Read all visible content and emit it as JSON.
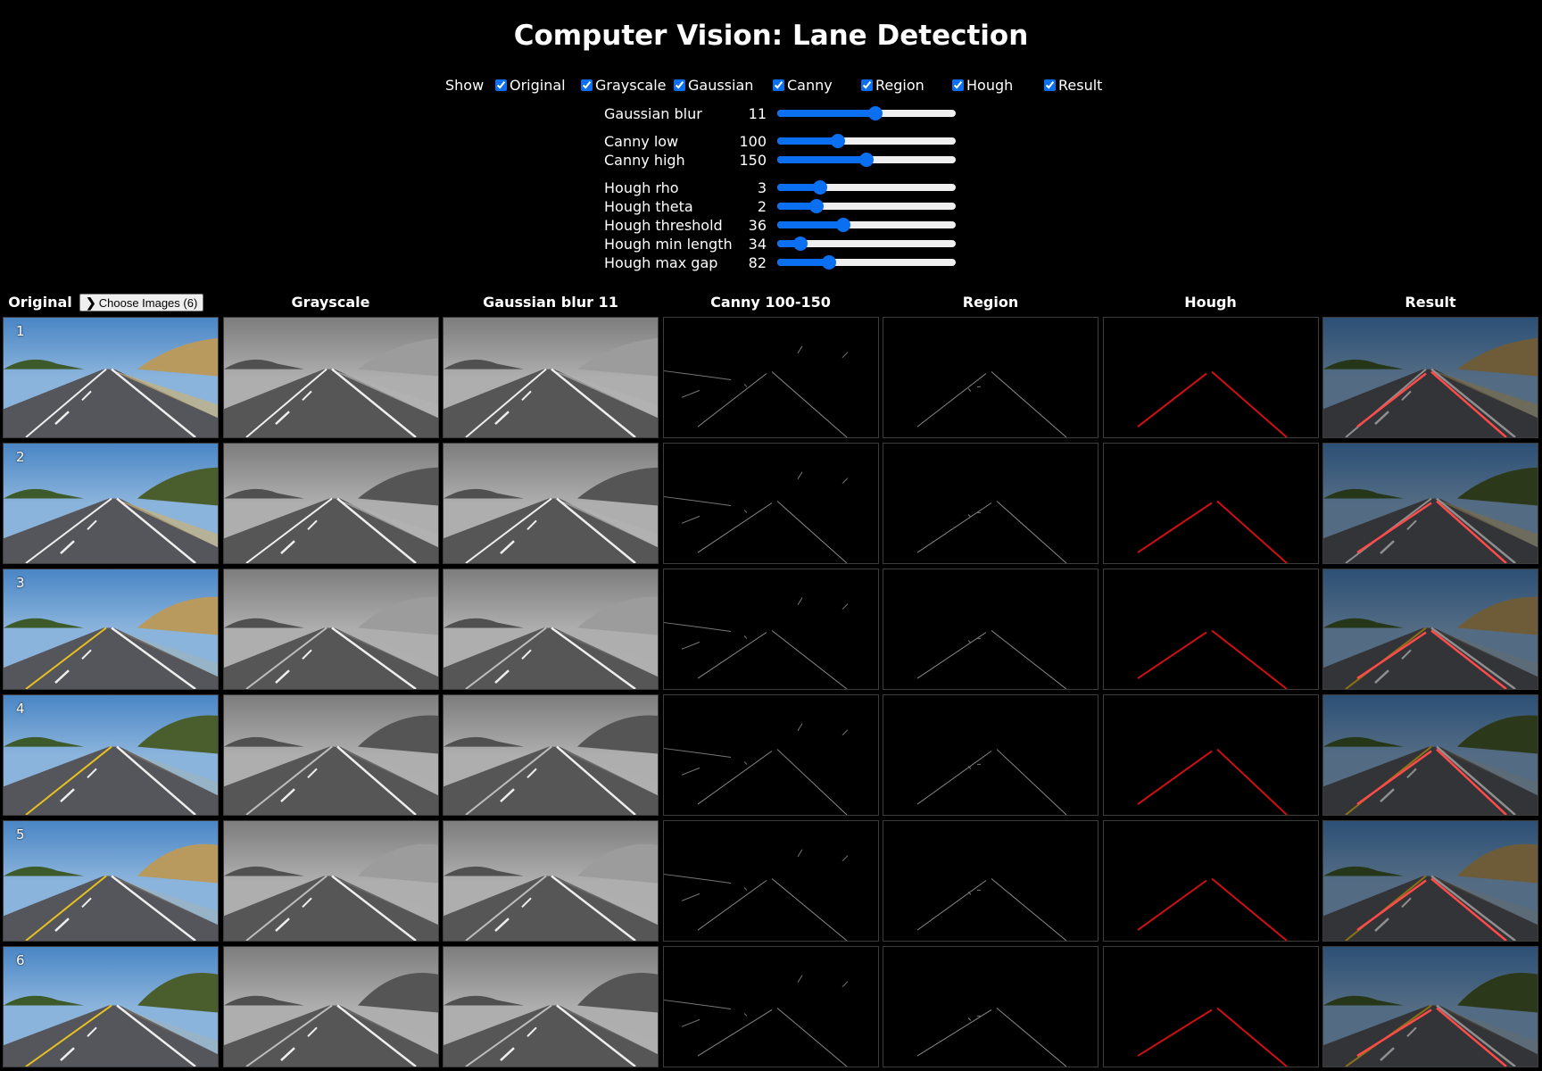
{
  "title": "Computer Vision: Lane Detection",
  "show": {
    "label": "Show",
    "options": [
      {
        "label": "Original",
        "checked": true
      },
      {
        "label": "Grayscale",
        "checked": true
      },
      {
        "label": "Gaussian",
        "checked": true
      },
      {
        "label": "Canny",
        "checked": true
      },
      {
        "label": "Region",
        "checked": true
      },
      {
        "label": "Hough",
        "checked": true
      },
      {
        "label": "Result",
        "checked": true
      }
    ]
  },
  "sliders": [
    {
      "label": "Gaussian blur",
      "value": "11",
      "percent": 55
    },
    {
      "label": "Canny low",
      "value": "100",
      "percent": 34
    },
    {
      "label": "Canny high",
      "value": "150",
      "percent": 50
    },
    {
      "label": "Hough rho",
      "value": "3",
      "percent": 24
    },
    {
      "label": "Hough theta",
      "value": "2",
      "percent": 22
    },
    {
      "label": "Hough threshold",
      "value": "36",
      "percent": 37
    },
    {
      "label": "Hough min length",
      "value": "34",
      "percent": 13
    },
    {
      "label": "Hough max gap",
      "value": "82",
      "percent": 29
    }
  ],
  "columns": [
    "Original",
    "Grayscale",
    "Gaussian blur 11",
    "Canny 100-150",
    "Region",
    "Hough",
    "Result"
  ],
  "choose_button": {
    "label": "Choose Images (6)",
    "icon": "chevron-right-icon"
  },
  "rows": [
    {
      "number": "1",
      "yellow_line": false
    },
    {
      "number": "2",
      "yellow_line": false
    },
    {
      "number": "3",
      "yellow_line": true
    },
    {
      "number": "4",
      "yellow_line": true
    },
    {
      "number": "5",
      "yellow_line": true
    },
    {
      "number": "6",
      "yellow_line": true
    }
  ],
  "colors": {
    "accent": "#0a6ff0",
    "hough_line": "#e01010",
    "background": "#000000"
  }
}
